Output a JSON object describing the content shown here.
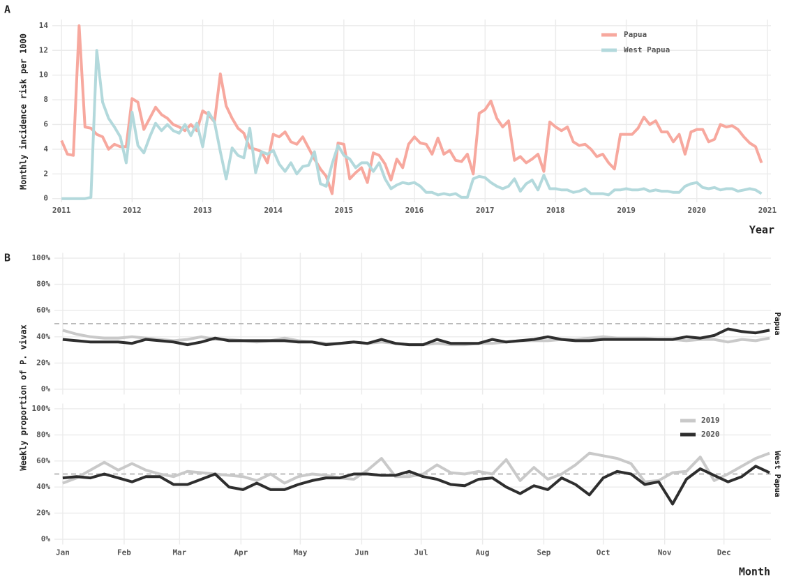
{
  "chart_data": [
    {
      "type": "line",
      "panel_label": "A",
      "ylabel": "Monthly incidence risk per 1000",
      "xlabel": "Year",
      "xlim": [
        2010.87,
        2021.05
      ],
      "xticks": [
        2011,
        2012,
        2013,
        2014,
        2015,
        2016,
        2017,
        2018,
        2019,
        2020,
        2021
      ],
      "ylim": [
        -0.3,
        14.5
      ],
      "yticks": [
        0,
        2,
        4,
        6,
        8,
        10,
        12,
        14
      ],
      "grid": true,
      "legend_position": "top-right",
      "x": [
        2011,
        2011.083,
        2011.167,
        2011.25,
        2011.333,
        2011.417,
        2011.5,
        2011.583,
        2011.667,
        2011.75,
        2011.833,
        2011.917,
        2012,
        2012.083,
        2012.167,
        2012.25,
        2012.333,
        2012.417,
        2012.5,
        2012.583,
        2012.667,
        2012.75,
        2012.833,
        2012.917,
        2013,
        2013.083,
        2013.167,
        2013.25,
        2013.333,
        2013.417,
        2013.5,
        2013.583,
        2013.667,
        2013.75,
        2013.833,
        2013.917,
        2014,
        2014.083,
        2014.167,
        2014.25,
        2014.333,
        2014.417,
        2014.5,
        2014.583,
        2014.667,
        2014.75,
        2014.833,
        2014.917,
        2015,
        2015.083,
        2015.167,
        2015.25,
        2015.333,
        2015.417,
        2015.5,
        2015.583,
        2015.667,
        2015.75,
        2015.833,
        2015.917,
        2016,
        2016.083,
        2016.167,
        2016.25,
        2016.333,
        2016.417,
        2016.5,
        2016.583,
        2016.667,
        2016.75,
        2016.833,
        2016.917,
        2017,
        2017.083,
        2017.167,
        2017.25,
        2017.333,
        2017.417,
        2017.5,
        2017.583,
        2017.667,
        2017.75,
        2017.833,
        2017.917,
        2018,
        2018.083,
        2018.167,
        2018.25,
        2018.333,
        2018.417,
        2018.5,
        2018.583,
        2018.667,
        2018.75,
        2018.833,
        2018.917,
        2019,
        2019.083,
        2019.167,
        2019.25,
        2019.333,
        2019.417,
        2019.5,
        2019.583,
        2019.667,
        2019.75,
        2019.833,
        2019.917,
        2020,
        2020.083,
        2020.167,
        2020.25,
        2020.333,
        2020.417,
        2020.5,
        2020.583,
        2020.667,
        2020.75,
        2020.833,
        2020.917
      ],
      "series": [
        {
          "name": "Papua",
          "color": "#f7a89e",
          "values": [
            4.7,
            3.6,
            3.5,
            14,
            5.8,
            5.7,
            5.2,
            5.0,
            4.0,
            4.4,
            4.2,
            4.2,
            8.1,
            7.8,
            5.6,
            6.5,
            7.4,
            6.8,
            6.5,
            6.0,
            5.8,
            5.5,
            6.0,
            5.5,
            7.1,
            6.8,
            6.2,
            10.1,
            7.5,
            6.5,
            5.7,
            5.3,
            4.1,
            4.0,
            3.8,
            2.9,
            5.2,
            5.0,
            5.4,
            4.6,
            4.4,
            5.0,
            4.1,
            3.2,
            2.4,
            1.8,
            0.4,
            4.5,
            4.4,
            1.6,
            2.1,
            2.5,
            1.3,
            3.7,
            3.5,
            2.8,
            1.5,
            3.2,
            2.5,
            4.4,
            5.0,
            4.5,
            4.4,
            3.6,
            4.9,
            3.6,
            3.9,
            3.1,
            3.0,
            3.6,
            2.0,
            6.9,
            7.2,
            7.9,
            6.5,
            5.8,
            6.3,
            3.1,
            3.4,
            2.9,
            3.2,
            3.6,
            2.2,
            6.2,
            5.8,
            5.5,
            5.8,
            4.6,
            4.3,
            4.4,
            4.0,
            3.4,
            3.6,
            2.9,
            2.4,
            5.2,
            5.2,
            5.2,
            5.7,
            6.6,
            6.0,
            6.3,
            5.4,
            5.4,
            4.6,
            5.2,
            3.6,
            5.4,
            5.6,
            5.6,
            4.6,
            4.8,
            6.0,
            5.8,
            5.9,
            5.6,
            5.0,
            4.5,
            4.2,
            2.9
          ]
        },
        {
          "name": "West Papua",
          "color": "#b3d9dc",
          "values": [
            0,
            0,
            0,
            0,
            0,
            0.1,
            12,
            7.8,
            6.5,
            5.8,
            5.0,
            2.9,
            7.0,
            4.3,
            3.7,
            5.0,
            6.1,
            5.5,
            6.0,
            5.5,
            5.3,
            6.0,
            5.1,
            6.1,
            4.2,
            7.0,
            6.2,
            3.8,
            1.6,
            4.1,
            3.5,
            3.3,
            5.7,
            2.1,
            3.8,
            3.6,
            3.9,
            2.8,
            2.2,
            2.9,
            2.0,
            2.6,
            2.7,
            3.8,
            1.2,
            1.0,
            2.8,
            4.3,
            3.5,
            3.2,
            2.5,
            2.9,
            2.9,
            2.2,
            2.9,
            1.6,
            0.8,
            1.1,
            1.3,
            1.2,
            1.3,
            1.0,
            0.5,
            0.5,
            0.3,
            0.4,
            0.3,
            0.4,
            0.1,
            0.1,
            1.6,
            1.8,
            1.7,
            1.3,
            1.0,
            0.8,
            1.0,
            1.6,
            0.6,
            1.2,
            1.5,
            0.7,
            1.9,
            0.8,
            0.8,
            0.7,
            0.7,
            0.5,
            0.6,
            0.8,
            0.4,
            0.4,
            0.4,
            0.3,
            0.7,
            0.7,
            0.8,
            0.7,
            0.7,
            0.8,
            0.6,
            0.7,
            0.6,
            0.6,
            0.5,
            0.5,
            1.0,
            1.2,
            1.3,
            0.9,
            0.8,
            0.9,
            0.7,
            0.8,
            0.8,
            0.6,
            0.7,
            0.8,
            0.7,
            0.4
          ]
        }
      ]
    },
    {
      "type": "facet-line",
      "panel_label": "B",
      "ylabel": "Weekly proportion of P. vivax",
      "xlabel": "Month",
      "xlim": [
        0.4,
        52.1
      ],
      "xticks": [
        {
          "value": 1,
          "label": "Jan"
        },
        {
          "value": 5.43,
          "label": "Feb"
        },
        {
          "value": 9.43,
          "label": "Mar"
        },
        {
          "value": 13.86,
          "label": "Apr"
        },
        {
          "value": 18.14,
          "label": "May"
        },
        {
          "value": 22.57,
          "label": "Jun"
        },
        {
          "value": 26.86,
          "label": "Jul"
        },
        {
          "value": 31.29,
          "label": "Aug"
        },
        {
          "value": 35.71,
          "label": "Sep"
        },
        {
          "value": 40,
          "label": "Oct"
        },
        {
          "value": 44.43,
          "label": "Nov"
        },
        {
          "value": 48.71,
          "label": "Dec"
        }
      ],
      "ylim": [
        -4,
        104
      ],
      "yticks": [
        {
          "value": 0,
          "label": "0%"
        },
        {
          "value": 20,
          "label": "20%"
        },
        {
          "value": 40,
          "label": "40%"
        },
        {
          "value": 60,
          "label": "60%"
        },
        {
          "value": 80,
          "label": "80%"
        },
        {
          "value": 100,
          "label": "100%"
        }
      ],
      "hline": 50,
      "grid": true,
      "series": [
        {
          "name": "2019",
          "color": "#c9c9c9"
        },
        {
          "name": "2020",
          "color": "#2e2e2e"
        }
      ],
      "x": [
        1,
        2,
        3,
        4,
        5,
        6,
        7,
        8,
        9,
        10,
        11,
        12,
        13,
        14,
        15,
        16,
        17,
        18,
        19,
        20,
        21,
        22,
        23,
        24,
        25,
        26,
        27,
        28,
        29,
        30,
        31,
        32,
        33,
        34,
        35,
        36,
        37,
        38,
        39,
        40,
        41,
        42,
        43,
        44,
        45,
        46,
        47,
        48,
        49,
        50,
        51,
        52
      ],
      "facets": [
        {
          "label": "Papua",
          "values": [
            [
              45,
              42,
              40,
              39,
              39,
              40,
              39,
              38,
              37,
              38,
              40,
              38,
              38,
              37,
              36,
              37,
              39,
              37,
              36,
              35,
              35,
              36,
              35,
              36,
              35,
              34,
              34,
              35,
              34,
              34,
              35,
              35,
              36,
              37,
              37,
              37,
              38,
              38,
              39,
              40,
              39,
              39,
              39,
              38,
              38,
              37,
              38,
              38,
              36,
              38,
              37,
              39
            ],
            [
              38,
              37,
              36,
              36,
              36,
              35,
              38,
              37,
              36,
              34,
              36,
              39,
              37,
              37,
              37,
              37,
              37,
              36,
              36,
              34,
              35,
              36,
              35,
              38,
              35,
              34,
              34,
              38,
              35,
              35,
              35,
              38,
              36,
              37,
              38,
              40,
              38,
              37,
              37,
              38,
              38,
              38,
              38,
              38,
              38,
              40,
              39,
              41,
              46,
              44,
              43,
              45
            ]
          ]
        },
        {
          "label": "West Papua",
          "values": [
            [
              43,
              47,
              53,
              59,
              53,
              58,
              53,
              50,
              48,
              52,
              51,
              50,
              49,
              48,
              45,
              50,
              43,
              48,
              50,
              49,
              47,
              46,
              53,
              62,
              48,
              48,
              50,
              57,
              51,
              50,
              52,
              50,
              61,
              45,
              55,
              46,
              50,
              57,
              66,
              64,
              62,
              58,
              44,
              45,
              51,
              52,
              63,
              45,
              50,
              56,
              62,
              66
            ],
            [
              47,
              48,
              47,
              50,
              47,
              44,
              48,
              48,
              42,
              42,
              46,
              50,
              40,
              38,
              43,
              38,
              38,
              42,
              45,
              47,
              47,
              50,
              50,
              49,
              49,
              52,
              48,
              46,
              42,
              41,
              46,
              47,
              40,
              35,
              41,
              38,
              47,
              42,
              34,
              47,
              52,
              50,
              42,
              44,
              27,
              46,
              54,
              49,
              44,
              48,
              56,
              51
            ]
          ]
        }
      ]
    }
  ]
}
